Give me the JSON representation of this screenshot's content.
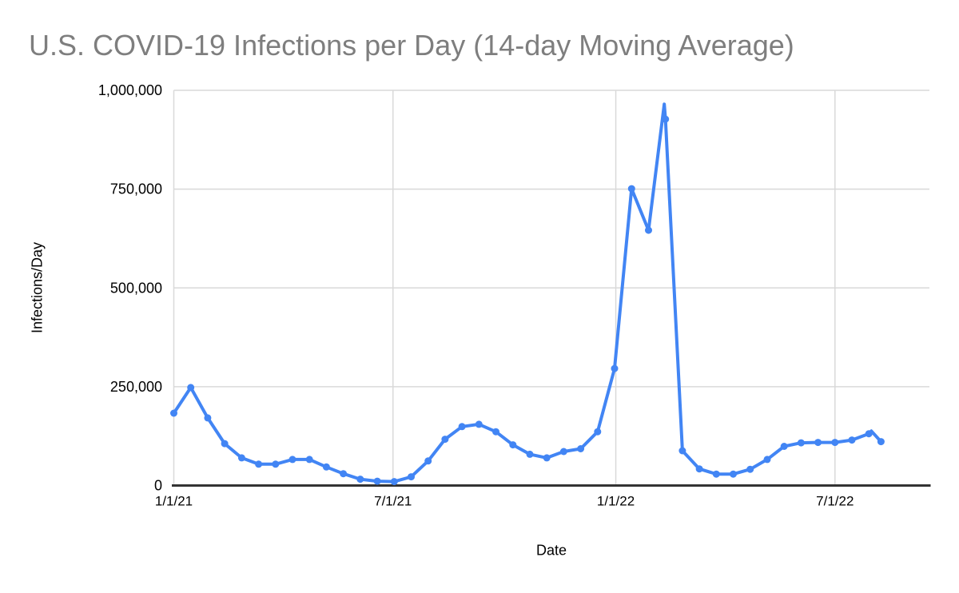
{
  "chart_data": {
    "type": "line",
    "title": "U.S. COVID-19 Infections per Day (14-day Moving Average)",
    "xlabel": "Date",
    "ylabel": "Infections/Day",
    "legend": "none",
    "grid": true,
    "ylim": [
      0,
      1000000
    ],
    "y_ticks": [
      {
        "value": 0,
        "label": "0"
      },
      {
        "value": 250000,
        "label": "250,000"
      },
      {
        "value": 500000,
        "label": "500,000"
      },
      {
        "value": 750000,
        "label": "750,000"
      },
      {
        "value": 1000000,
        "label": "1,000,000"
      }
    ],
    "x_domain_days": [
      0,
      624
    ],
    "x_ticks": [
      {
        "day": 0,
        "label": "1/1/21"
      },
      {
        "day": 181,
        "label": "7/1/21"
      },
      {
        "day": 365,
        "label": "1/1/22"
      },
      {
        "day": 546,
        "label": "7/1/22"
      }
    ],
    "series": [
      {
        "name": "Infections/Day",
        "color": "#4285f4",
        "points": [
          {
            "date": "1/1/21",
            "day": 0,
            "value": 183000,
            "marker": true
          },
          {
            "date": "1/15/21",
            "day": 14,
            "value": 248000,
            "marker": true
          },
          {
            "date": "1/29/21",
            "day": 28,
            "value": 171000,
            "marker": true
          },
          {
            "date": "2/12/21",
            "day": 42,
            "value": 106000,
            "marker": true
          },
          {
            "date": "2/26/21",
            "day": 56,
            "value": 70000,
            "marker": true
          },
          {
            "date": "3/12/21",
            "day": 70,
            "value": 54000,
            "marker": true
          },
          {
            "date": "3/26/21",
            "day": 84,
            "value": 54000,
            "marker": true
          },
          {
            "date": "4/9/21",
            "day": 98,
            "value": 66000,
            "marker": true
          },
          {
            "date": "4/23/21",
            "day": 112,
            "value": 66000,
            "marker": true
          },
          {
            "date": "5/7/21",
            "day": 126,
            "value": 47000,
            "marker": true
          },
          {
            "date": "5/21/21",
            "day": 140,
            "value": 30000,
            "marker": true
          },
          {
            "date": "6/4/21",
            "day": 154,
            "value": 16000,
            "marker": true
          },
          {
            "date": "6/18/21",
            "day": 168,
            "value": 11000,
            "marker": true
          },
          {
            "date": "7/2/21",
            "day": 182,
            "value": 10000,
            "marker": true
          },
          {
            "date": "7/16/21",
            "day": 196,
            "value": 22000,
            "marker": true
          },
          {
            "date": "7/30/21",
            "day": 210,
            "value": 62000,
            "marker": true
          },
          {
            "date": "8/13/21",
            "day": 224,
            "value": 117000,
            "marker": true
          },
          {
            "date": "8/27/21",
            "day": 238,
            "value": 149000,
            "marker": true
          },
          {
            "date": "9/10/21",
            "day": 252,
            "value": 155000,
            "marker": true
          },
          {
            "date": "9/24/21",
            "day": 266,
            "value": 136000,
            "marker": true
          },
          {
            "date": "10/8/21",
            "day": 280,
            "value": 103000,
            "marker": true
          },
          {
            "date": "10/22/21",
            "day": 294,
            "value": 79000,
            "marker": true
          },
          {
            "date": "11/5/21",
            "day": 308,
            "value": 70000,
            "marker": true
          },
          {
            "date": "11/19/21",
            "day": 322,
            "value": 86000,
            "marker": true
          },
          {
            "date": "12/3/21",
            "day": 336,
            "value": 93000,
            "marker": true
          },
          {
            "date": "12/17/21",
            "day": 350,
            "value": 136000,
            "marker": true
          },
          {
            "date": "12/31/21",
            "day": 364,
            "value": 296000,
            "marker": true
          },
          {
            "date": "1/14/22",
            "day": 378,
            "value": 751000,
            "marker": true
          },
          {
            "date": "1/28/22",
            "day": 392,
            "value": 646000,
            "marker": true
          },
          {
            "date": "2/10/22",
            "day": 405,
            "value": 965000,
            "marker": false
          },
          {
            "date": "2/11/22",
            "day": 406,
            "value": 927000,
            "marker": true
          },
          {
            "date": "2/25/22",
            "day": 420,
            "value": 88000,
            "marker": true
          },
          {
            "date": "3/11/22",
            "day": 434,
            "value": 42000,
            "marker": true
          },
          {
            "date": "3/25/22",
            "day": 448,
            "value": 29000,
            "marker": true
          },
          {
            "date": "4/8/22",
            "day": 462,
            "value": 29000,
            "marker": true
          },
          {
            "date": "4/22/22",
            "day": 476,
            "value": 41000,
            "marker": true
          },
          {
            "date": "5/6/22",
            "day": 490,
            "value": 66000,
            "marker": true
          },
          {
            "date": "5/20/22",
            "day": 504,
            "value": 99000,
            "marker": true
          },
          {
            "date": "6/3/22",
            "day": 518,
            "value": 108000,
            "marker": true
          },
          {
            "date": "6/17/22",
            "day": 532,
            "value": 109000,
            "marker": true
          },
          {
            "date": "7/1/22",
            "day": 546,
            "value": 109000,
            "marker": true
          },
          {
            "date": "7/15/22",
            "day": 560,
            "value": 115000,
            "marker": true
          },
          {
            "date": "7/29/22",
            "day": 574,
            "value": 131000,
            "marker": true
          },
          {
            "date": "7/31/22",
            "day": 576,
            "value": 138000,
            "marker": false
          },
          {
            "date": "8/8/22",
            "day": 584,
            "value": 111000,
            "marker": true
          }
        ]
      }
    ]
  },
  "style": {
    "line_color": "#4285f4",
    "grid_color": "#d9d9d9",
    "axis_line_color": "#333333",
    "title_color": "#7e7e7e",
    "tick_label_color": "#000000",
    "background": "#ffffff"
  }
}
